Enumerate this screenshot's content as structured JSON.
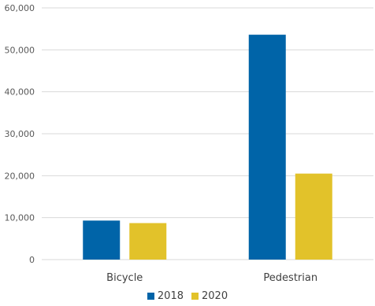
{
  "chart_data": {
    "type": "bar",
    "categories": [
      "Bicycle",
      "Pedestrian"
    ],
    "series": [
      {
        "name": "2018",
        "values": [
          9300,
          53600
        ],
        "color": "#0064a8"
      },
      {
        "name": "2020",
        "values": [
          8700,
          20500
        ],
        "color": "#e2c22a"
      }
    ],
    "ylim": [
      0,
      60000
    ],
    "yticks": [
      "0",
      "10,000",
      "20,000",
      "30,000",
      "40,000",
      "50,000",
      "60,000"
    ],
    "grid": true,
    "legend_position": "bottom"
  }
}
